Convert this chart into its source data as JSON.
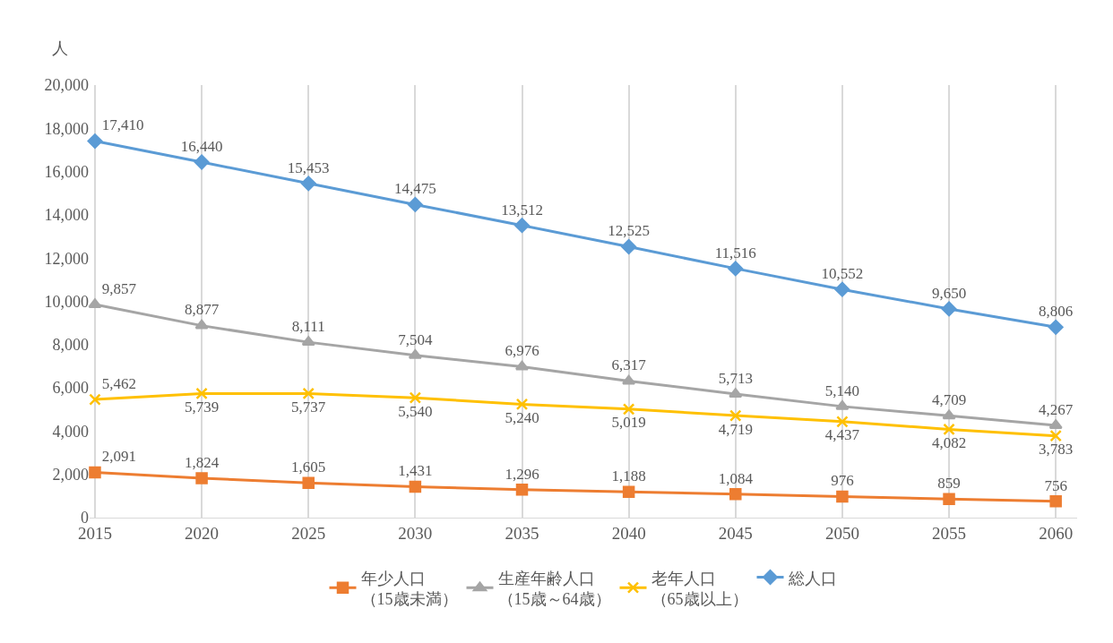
{
  "chart_data": {
    "type": "line",
    "ylabel": "人",
    "categories": [
      "2015",
      "2020",
      "2025",
      "2030",
      "2035",
      "2040",
      "2045",
      "2050",
      "2055",
      "2060"
    ],
    "series": [
      {
        "name": "年少人口（15歳未満）",
        "color": "#ed7d31",
        "marker": "square",
        "values": [
          2091,
          1824,
          1605,
          1431,
          1296,
          1188,
          1084,
          976,
          859,
          756
        ],
        "value_labels": [
          "2,091",
          "1,824",
          "1,605",
          "1,431",
          "1,296",
          "1,188",
          "1,084",
          "976",
          "859",
          "756"
        ]
      },
      {
        "name": "生産年齢人口（15歳～64歳）",
        "color": "#a5a5a5",
        "marker": "triangle",
        "values": [
          9857,
          8877,
          8111,
          7504,
          6976,
          6317,
          5713,
          5140,
          4709,
          4267
        ],
        "value_labels": [
          "9,857",
          "8,877",
          "8,111",
          "7,504",
          "6,976",
          "6,317",
          "5,713",
          "5,140",
          "4,709",
          "4,267"
        ]
      },
      {
        "name": "老年人口（65歳以上）",
        "color": "#ffc000",
        "marker": "cross",
        "values": [
          5462,
          5739,
          5737,
          5540,
          5240,
          5019,
          4719,
          4437,
          4082,
          3783
        ],
        "value_labels": [
          "5,462",
          "5,739",
          "5,737",
          "5,540",
          "5,240",
          "5,019",
          "4,719",
          "4,437",
          "4,082",
          "3,783"
        ]
      },
      {
        "name": "総人口",
        "color": "#5b9bd5",
        "marker": "diamond",
        "values": [
          17410,
          16440,
          15453,
          14475,
          13512,
          12525,
          11516,
          10552,
          9650,
          8806
        ],
        "value_labels": [
          "17,410",
          "16,440",
          "15,453",
          "14,475",
          "13,512",
          "12,525",
          "11,516",
          "10,552",
          "9,650",
          "8,806"
        ]
      }
    ],
    "ylim": [
      0,
      20000
    ],
    "yticks": [
      {
        "value": 0,
        "label": "0"
      },
      {
        "value": 2000,
        "label": "2,000"
      },
      {
        "value": 4000,
        "label": "4,000"
      },
      {
        "value": 6000,
        "label": "6,000"
      },
      {
        "value": 8000,
        "label": "8,000"
      },
      {
        "value": 10000,
        "label": "10,000"
      },
      {
        "value": 12000,
        "label": "12,000"
      },
      {
        "value": 14000,
        "label": "14,000"
      },
      {
        "value": 16000,
        "label": "16,000"
      },
      {
        "value": 18000,
        "label": "18,000"
      },
      {
        "value": 20000,
        "label": "20,000"
      }
    ],
    "grid": "x",
    "legend": "bottom",
    "line_style": "solid"
  }
}
